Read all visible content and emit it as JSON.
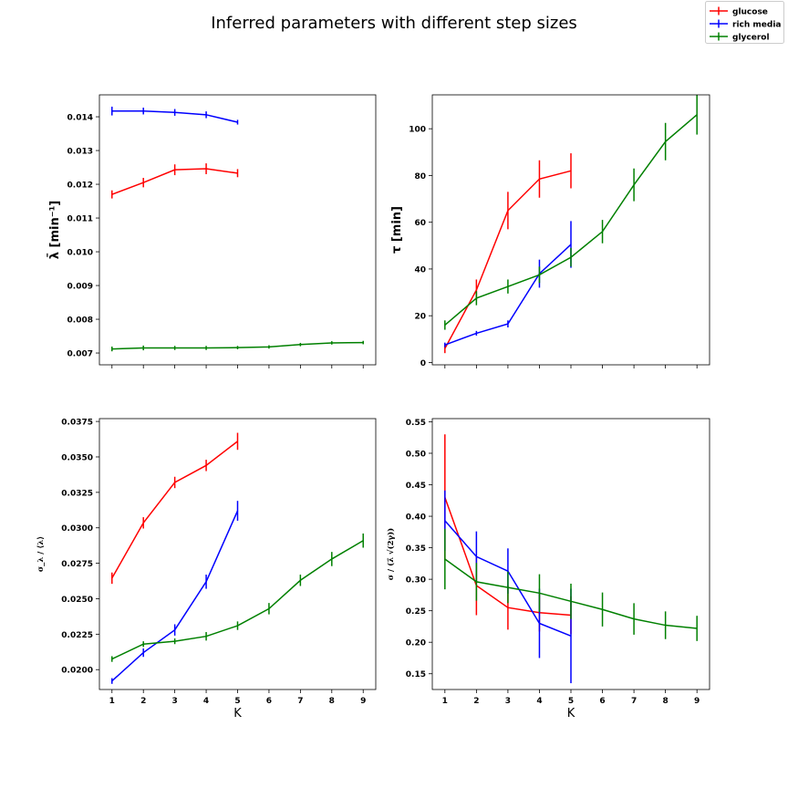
{
  "title": "Inferred parameters with different step sizes",
  "legend": {
    "location": "top-right",
    "entries": [
      {
        "name": "glucose",
        "color": "#ff0000"
      },
      {
        "name": "rich media",
        "color": "#0000ff"
      },
      {
        "name": "glycerol",
        "color": "#008000"
      }
    ]
  },
  "chart_data": [
    {
      "type": "line",
      "panel": "top-left",
      "ylabel": "λ̄ [min⁻¹]",
      "xlabel": "",
      "xlim": [
        0.6,
        9.4
      ],
      "ylim": [
        0.00665,
        0.01465
      ],
      "xticks": [
        "1",
        "2",
        "3",
        "4",
        "5",
        "6",
        "7",
        "8",
        "9"
      ],
      "show_xticklabels": false,
      "yticks": [
        "0.007",
        "0.008",
        "0.009",
        "0.010",
        "0.011",
        "0.012",
        "0.013",
        "0.014"
      ],
      "series": [
        {
          "name": "glucose",
          "color": "#ff0000",
          "x": [
            1,
            2,
            3,
            4,
            5
          ],
          "y": [
            0.0117,
            0.01205,
            0.01243,
            0.01246,
            0.01233
          ],
          "err": [
            0.00012,
            0.00014,
            0.00016,
            0.00016,
            0.00012
          ]
        },
        {
          "name": "rich media",
          "color": "#0000ff",
          "x": [
            1,
            2,
            3,
            4,
            5
          ],
          "y": [
            0.01417,
            0.01417,
            0.01413,
            0.01406,
            0.01384
          ],
          "err": [
            0.00013,
            0.0001,
            0.0001,
            0.0001,
            7e-05
          ]
        },
        {
          "name": "glycerol",
          "color": "#008000",
          "x": [
            1,
            2,
            3,
            4,
            5,
            6,
            7,
            8,
            9
          ],
          "y": [
            0.00712,
            0.00715,
            0.00715,
            0.00715,
            0.00716,
            0.00718,
            0.00725,
            0.0073,
            0.00731
          ],
          "err": [
            7e-05,
            7e-05,
            6e-05,
            6e-05,
            5e-05,
            5e-05,
            5e-05,
            5e-05,
            5e-05
          ]
        }
      ]
    },
    {
      "type": "line",
      "panel": "top-right",
      "ylabel": "τ [min]",
      "xlabel": "",
      "xlim": [
        0.6,
        9.4
      ],
      "ylim": [
        -1,
        114.5
      ],
      "xticks": [
        "1",
        "2",
        "3",
        "4",
        "5",
        "6",
        "7",
        "8",
        "9"
      ],
      "show_xticklabels": false,
      "yticks": [
        "0",
        "20",
        "40",
        "60",
        "80",
        "100"
      ],
      "series": [
        {
          "name": "glucose",
          "color": "#ff0000",
          "x": [
            1,
            2,
            3,
            4,
            5
          ],
          "y": [
            6,
            31,
            65,
            78.5,
            82
          ],
          "err": [
            2,
            4.5,
            8,
            8,
            7.5
          ]
        },
        {
          "name": "rich media",
          "color": "#0000ff",
          "x": [
            1,
            2,
            3,
            4,
            5
          ],
          "y": [
            7.5,
            12.5,
            16.5,
            38,
            50.5
          ],
          "err": [
            1,
            1,
            1.5,
            6,
            10
          ]
        },
        {
          "name": "glycerol",
          "color": "#008000",
          "x": [
            1,
            2,
            3,
            4,
            5,
            6,
            7,
            8,
            9
          ],
          "y": [
            16,
            27.5,
            32.5,
            37.5,
            45,
            56,
            76,
            94.5,
            106
          ],
          "err": [
            2,
            3,
            3,
            3.5,
            4,
            5,
            7,
            8,
            8.5
          ]
        }
      ]
    },
    {
      "type": "line",
      "panel": "bottom-left",
      "ylabel": "σ_λ / ⟨λ⟩",
      "xlabel": "K",
      "xlim": [
        0.6,
        9.4
      ],
      "ylim": [
        0.0186,
        0.0377
      ],
      "xticks": [
        "1",
        "2",
        "3",
        "4",
        "5",
        "6",
        "7",
        "8",
        "9"
      ],
      "show_xticklabels": true,
      "yticks": [
        "0.0200",
        "0.0225",
        "0.0250",
        "0.0275",
        "0.0300",
        "0.0325",
        "0.0350",
        "0.0375"
      ],
      "series": [
        {
          "name": "glucose",
          "color": "#ff0000",
          "x": [
            1,
            2,
            3,
            4,
            5
          ],
          "y": [
            0.02645,
            0.03035,
            0.0332,
            0.0344,
            0.0361
          ],
          "err": [
            0.0004,
            0.0004,
            0.0004,
            0.0004,
            0.0006
          ]
        },
        {
          "name": "rich media",
          "color": "#0000ff",
          "x": [
            1,
            2,
            3,
            4,
            5
          ],
          "y": [
            0.0192,
            0.0212,
            0.0228,
            0.0262,
            0.0312
          ],
          "err": [
            0.0002,
            0.0003,
            0.0004,
            0.0005,
            0.0007
          ]
        },
        {
          "name": "glycerol",
          "color": "#008000",
          "x": [
            1,
            2,
            3,
            4,
            5,
            6,
            7,
            8,
            9
          ],
          "y": [
            0.02075,
            0.0218,
            0.022,
            0.02235,
            0.0231,
            0.0243,
            0.0263,
            0.0278,
            0.0291
          ],
          "err": [
            0.0002,
            0.0002,
            0.0002,
            0.0003,
            0.0003,
            0.0004,
            0.0004,
            0.0005,
            0.0005
          ]
        }
      ]
    },
    {
      "type": "line",
      "panel": "bottom-right",
      "ylabel": "σ / (λ̄ √(2γ))",
      "xlabel": "K",
      "xlim": [
        0.6,
        9.4
      ],
      "ylim": [
        0.125,
        0.555
      ],
      "xticks": [
        "1",
        "2",
        "3",
        "4",
        "5",
        "6",
        "7",
        "8",
        "9"
      ],
      "show_xticklabels": true,
      "yticks": [
        "0.15",
        "0.20",
        "0.25",
        "0.30",
        "0.35",
        "0.40",
        "0.45",
        "0.50",
        "0.55"
      ],
      "series": [
        {
          "name": "glucose",
          "color": "#ff0000",
          "x": [
            1,
            2,
            3,
            4,
            5
          ],
          "y": [
            0.43,
            0.29,
            0.255,
            0.247,
            0.243
          ],
          "err": [
            0.1,
            0.047,
            0.035,
            0.03,
            0.03
          ]
        },
        {
          "name": "rich media",
          "color": "#0000ff",
          "x": [
            1,
            2,
            3,
            4,
            5
          ],
          "y": [
            0.393,
            0.336,
            0.313,
            0.23,
            0.21
          ],
          "err": [
            0.048,
            0.04,
            0.036,
            0.055,
            0.075
          ]
        },
        {
          "name": "glycerol",
          "color": "#008000",
          "x": [
            1,
            2,
            3,
            4,
            5,
            6,
            7,
            8,
            9
          ],
          "y": [
            0.332,
            0.296,
            0.287,
            0.278,
            0.265,
            0.252,
            0.237,
            0.227,
            0.222
          ],
          "err": [
            0.048,
            0.03,
            0.025,
            0.03,
            0.028,
            0.027,
            0.025,
            0.022,
            0.02
          ]
        }
      ]
    }
  ]
}
